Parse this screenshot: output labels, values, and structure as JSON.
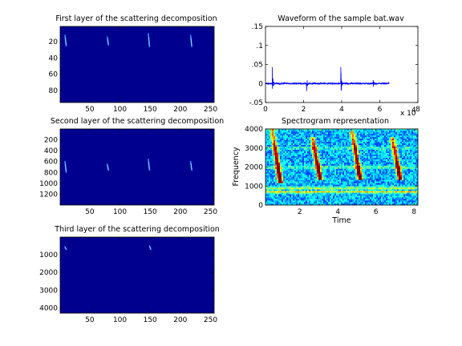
{
  "chart_data": [
    {
      "type": "heatmap",
      "title": "First layer of the scattering decomposition",
      "xlim": [
        1,
        256
      ],
      "ylim": [
        1,
        95
      ],
      "xticks": [
        50,
        100,
        150,
        200,
        250
      ],
      "yticks": [
        20,
        40,
        60,
        80
      ],
      "colormap": "jet",
      "background_color": "#00008f",
      "features": [
        {
          "x": 10,
          "y_start": 12,
          "y_end": 25
        },
        {
          "x": 80,
          "y_start": 14,
          "y_end": 24
        },
        {
          "x": 148,
          "y_start": 10,
          "y_end": 26
        },
        {
          "x": 218,
          "y_start": 12,
          "y_end": 26
        }
      ]
    },
    {
      "type": "line",
      "title": "Waveform of the sample bat.wav",
      "xlim": [
        0,
        80000
      ],
      "ylim": [
        -0.05,
        0.15
      ],
      "xticks": [
        0,
        2,
        4,
        6,
        8
      ],
      "yticks": [
        -0.05,
        0,
        0.05,
        0.1,
        0.15
      ],
      "x_multiplier": "x 10",
      "x_multiplier_exp": "4",
      "line_color": "#0000ff",
      "signal_end": 65000,
      "bursts": [
        {
          "x": 3600,
          "amplitude": 0.047
        },
        {
          "x": 21500,
          "amplitude": 0.03
        },
        {
          "x": 39500,
          "amplitude": 0.052
        },
        {
          "x": 56500,
          "amplitude": 0.017
        }
      ]
    },
    {
      "type": "heatmap",
      "title": "Second layer of the scattering decomposition",
      "xlim": [
        1,
        256
      ],
      "ylim": [
        1,
        1400
      ],
      "xticks": [
        50,
        100,
        150,
        200,
        250
      ],
      "yticks": [
        200,
        400,
        600,
        800,
        1000,
        1200
      ],
      "colormap": "jet",
      "background_color": "#00008f",
      "features": [
        {
          "x": 10,
          "y_start": 600,
          "y_end": 800
        },
        {
          "x": 80,
          "y_start": 650,
          "y_end": 760
        },
        {
          "x": 148,
          "y_start": 560,
          "y_end": 760
        },
        {
          "x": 218,
          "y_start": 600,
          "y_end": 760
        }
      ]
    },
    {
      "type": "heatmap",
      "title": "Spectrogram representation",
      "xlabel": "Time",
      "ylabel": "Frequency",
      "xlim": [
        0.2,
        8.2
      ],
      "ylim": [
        0,
        4000
      ],
      "xticks": [
        2,
        4,
        6,
        8
      ],
      "yticks": [
        0,
        1000,
        2000,
        3000,
        4000
      ],
      "colormap": "jet",
      "calls": [
        {
          "time": 0.5,
          "freq_top": 4000,
          "freq_bottom": 1400
        },
        {
          "time": 2.6,
          "freq_top": 3600,
          "freq_bottom": 1500
        },
        {
          "time": 4.7,
          "freq_top": 3900,
          "freq_bottom": 1500
        },
        {
          "time": 6.8,
          "freq_top": 3600,
          "freq_bottom": 1500
        }
      ],
      "bands": [
        {
          "freq": 700,
          "strength": 0.55
        },
        {
          "freq": 900,
          "strength": 0.5
        },
        {
          "freq": 2000,
          "strength": 0.3
        },
        {
          "freq": 3000,
          "strength": 0.25
        }
      ]
    },
    {
      "type": "heatmap",
      "title": "Third layer of the scattering decomposition",
      "xlim": [
        1,
        256
      ],
      "ylim": [
        1,
        4300
      ],
      "xticks": [
        50,
        100,
        150,
        200,
        250
      ],
      "yticks": [
        1000,
        2000,
        3000,
        4000
      ],
      "colormap": "jet",
      "background_color": "#00008f",
      "features": [
        {
          "x": 10,
          "y_start": 550,
          "y_end": 700
        },
        {
          "x": 150,
          "y_start": 500,
          "y_end": 700
        }
      ]
    }
  ]
}
